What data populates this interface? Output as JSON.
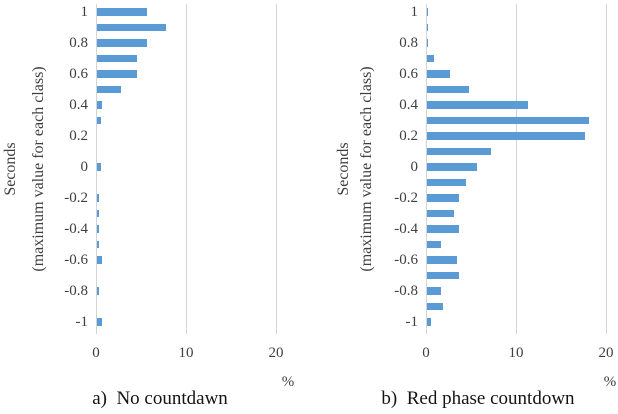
{
  "figure": {
    "type": "two-panel horizontal bar figure",
    "background": "#ffffff"
  },
  "colors": {
    "bar": "#5B9BD5",
    "gridline": "#d4d4d4",
    "tick_text": "#3f3f3f",
    "caption_text": "#141414"
  },
  "chart_data": [
    {
      "type": "bar",
      "orientation": "horizontal",
      "title": "a)  No countdawn",
      "xlabel": "%",
      "ylabel_line1": "Seconds",
      "ylabel_line2": "(maximum value for each class)",
      "xlim": [
        0,
        20
      ],
      "xticks": [
        "0",
        "10",
        "20"
      ],
      "grid": "vertical-major",
      "legend": "none",
      "categories": [
        1,
        0.9,
        0.8,
        0.7,
        0.6,
        0.5,
        0.4,
        0.3,
        0.2,
        0.1,
        0,
        -0.1,
        -0.2,
        -0.3,
        -0.4,
        -0.5,
        -0.6,
        -0.7,
        -0.8,
        -0.9,
        -1
      ],
      "values": [
        5.6,
        7.7,
        5.6,
        4.4,
        4.4,
        2.7,
        0.5,
        0.4,
        0,
        0,
        0.4,
        0,
        0.2,
        0.2,
        0.2,
        0.2,
        0.5,
        0,
        0.2,
        0,
        0.6
      ],
      "ytick_labels": [
        "1",
        "0.8",
        "0.6",
        "0.4",
        "0.2",
        "0",
        "-0.2",
        "-0.4",
        "-0.6",
        "-0.8",
        "-1"
      ],
      "bar_color": "#5B9BD5"
    },
    {
      "type": "bar",
      "orientation": "horizontal",
      "title": "b)  Red phase countdown",
      "xlabel": "%",
      "ylabel_line1": "Seconds",
      "ylabel_line2": "(maximum value for each class)",
      "xlim": [
        0,
        20
      ],
      "xticks": [
        "0",
        "10",
        "20"
      ],
      "grid": "vertical-major",
      "legend": "none",
      "categories": [
        1,
        0.9,
        0.8,
        0.7,
        0.6,
        0.5,
        0.4,
        0.3,
        0.2,
        0.1,
        0,
        -0.1,
        -0.2,
        -0.3,
        -0.4,
        -0.5,
        -0.6,
        -0.7,
        -0.8,
        -0.9,
        -1
      ],
      "values": [
        0.1,
        0.1,
        0.1,
        0.8,
        2.5,
        4.7,
        11.2,
        18,
        17.5,
        7.1,
        5.6,
        4.3,
        3.5,
        3,
        3.6,
        1.5,
        3.3,
        3.5,
        1.6,
        1.8,
        0.4
      ],
      "ytick_labels": [
        "1",
        "0.8",
        "0.6",
        "0.4",
        "0.2",
        "0",
        "-0.2",
        "-0.4",
        "-0.6",
        "-0.8",
        "-1"
      ],
      "bar_color": "#5B9BD5"
    }
  ]
}
